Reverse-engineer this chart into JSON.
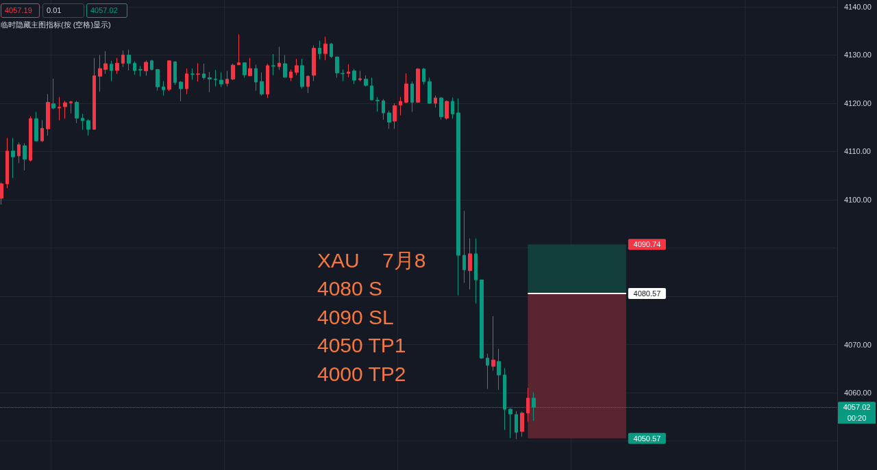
{
  "chart_data": {
    "type": "candlestick",
    "categories": [
      null,
      null,
      null,
      null,
      null,
      null,
      null,
      null,
      null,
      null,
      null,
      null,
      null,
      null,
      null,
      null,
      null,
      null,
      null,
      null,
      null,
      null,
      null,
      null,
      null,
      null,
      null,
      null,
      null,
      null,
      null,
      null,
      null,
      null,
      null,
      null,
      null,
      null,
      null,
      null,
      null,
      null,
      null,
      null,
      null,
      null,
      null,
      null,
      null,
      null,
      null,
      null,
      null,
      null,
      null,
      null,
      null,
      null,
      null,
      null,
      null,
      null,
      null,
      null,
      null,
      null,
      null,
      null,
      null,
      null,
      null,
      null,
      null,
      null,
      null,
      null,
      null,
      null,
      null,
      null,
      null,
      null,
      null,
      null,
      null,
      null,
      null,
      null,
      null,
      null,
      null,
      null,
      null,
      null,
      null,
      null,
      null,
      null,
      null,
      null,
      null,
      null,
      null,
      null,
      null,
      null,
      null,
      null,
      null,
      null,
      null,
      null,
      null,
      null,
      null,
      null,
      null,
      null,
      null,
      null,
      null,
      null,
      null,
      null,
      null,
      null,
      null,
      null,
      null,
      null,
      null,
      null,
      null,
      null,
      null,
      null,
      null,
      null,
      null,
      null,
      null,
      null,
      null,
      null,
      null
    ],
    "ohlc": [
      [
        4100.3,
        4103.6,
        4099.0,
        4103.3
      ],
      [
        4103.3,
        4112.8,
        4102.4,
        4110.1
      ],
      [
        4110.1,
        4112.8,
        4104.5,
        4108.9
      ],
      [
        4109.1,
        4111.9,
        4107.6,
        4111.4
      ],
      [
        4111.2,
        4111.7,
        4106.1,
        4108.4
      ],
      [
        4108.2,
        4117.3,
        4107.9,
        4116.8
      ],
      [
        4116.8,
        4118.2,
        4112.1,
        4112.2
      ],
      [
        4112.2,
        4116.5,
        4112.0,
        4114.8
      ],
      [
        4114.7,
        4121.9,
        4113.3,
        4120.2
      ],
      [
        4119.9,
        4125.1,
        4118.7,
        4119.0
      ],
      [
        4119.0,
        4121.3,
        4116.5,
        4119.2
      ],
      [
        4119.3,
        4120.5,
        4116.8,
        4120.1
      ],
      [
        4120.1,
        4120.5,
        4117.9,
        4120.3
      ],
      [
        4120.2,
        4120.5,
        4115.9,
        4116.9
      ],
      [
        4116.9,
        4117.8,
        4114.5,
        4116.4
      ],
      [
        4116.4,
        4116.7,
        4113.3,
        4114.6
      ],
      [
        4114.6,
        4129.4,
        4114.5,
        4125.7
      ],
      [
        4125.6,
        4130.0,
        4122.4,
        4127.2
      ],
      [
        4127.0,
        4130.8,
        4126.1,
        4128.2
      ],
      [
        4128.1,
        4128.8,
        4124.6,
        4126.8
      ],
      [
        4126.8,
        4129.4,
        4126.1,
        4128.3
      ],
      [
        4128.3,
        4130.9,
        4127.5,
        4130.0
      ],
      [
        4130.0,
        4131.1,
        4126.8,
        4128.3
      ],
      [
        4128.3,
        4128.7,
        4125.9,
        4126.8
      ],
      [
        4127.0,
        4127.7,
        4125.6,
        4126.9
      ],
      [
        4126.7,
        4128.9,
        4125.7,
        4128.5
      ],
      [
        4128.8,
        4129.0,
        4126.8,
        4127.0
      ],
      [
        4127.0,
        4127.1,
        4122.6,
        4123.4
      ],
      [
        4123.4,
        4124.6,
        4121.6,
        4122.8
      ],
      [
        4122.9,
        4128.9,
        4122.5,
        4128.8
      ],
      [
        4128.6,
        4128.7,
        4123.8,
        4124.3
      ],
      [
        4124.4,
        4124.6,
        4120.4,
        4123.0
      ],
      [
        4123.0,
        4127.2,
        4121.9,
        4126.1
      ],
      [
        4126.1,
        4127.2,
        4124.9,
        4126.0
      ],
      [
        4126.0,
        4128.3,
        4124.5,
        4126.1
      ],
      [
        4126.1,
        4128.2,
        4124.9,
        4125.3
      ],
      [
        4125.3,
        4126.5,
        4122.3,
        4125.0
      ],
      [
        4125.0,
        4126.9,
        4123.5,
        4124.9
      ],
      [
        4124.8,
        4126.4,
        4123.4,
        4124.0
      ],
      [
        4124.1,
        4126.7,
        4123.5,
        4125.0
      ],
      [
        4125.0,
        4128.2,
        4124.8,
        4127.9
      ],
      [
        4128.0,
        4134.3,
        4127.9,
        4128.4
      ],
      [
        4128.4,
        4128.4,
        4125.3,
        4125.9
      ],
      [
        4125.7,
        4129.4,
        4125.6,
        4127.2
      ],
      [
        4127.2,
        4128.0,
        4122.6,
        4124.4
      ],
      [
        4124.5,
        4126.4,
        4121.6,
        4121.9
      ],
      [
        4121.9,
        4128.2,
        4121.1,
        4127.8
      ],
      [
        4127.8,
        4130.2,
        4125.8,
        4127.7
      ],
      [
        4127.6,
        4131.7,
        4126.9,
        4128.3
      ],
      [
        4128.2,
        4130.0,
        4125.3,
        4125.4
      ],
      [
        4125.3,
        4127.0,
        4124.6,
        4126.5
      ],
      [
        4126.4,
        4129.2,
        4125.8,
        4127.8
      ],
      [
        4127.8,
        4129.2,
        4123.0,
        4123.5
      ],
      [
        4123.5,
        4125.8,
        4122.1,
        4125.6
      ],
      [
        4125.8,
        4132.0,
        4124.6,
        4131.4
      ],
      [
        4131.4,
        4133.0,
        4129.1,
        4130.3
      ],
      [
        4130.3,
        4133.8,
        4128.9,
        4132.3
      ],
      [
        4132.3,
        4132.5,
        4129.4,
        4129.7
      ],
      [
        4129.6,
        4129.7,
        4125.3,
        4126.3
      ],
      [
        4126.2,
        4127.0,
        4124.6,
        4126.1
      ],
      [
        4126.2,
        4128.1,
        4125.4,
        4126.5
      ],
      [
        4126.7,
        4127.1,
        4124.0,
        4124.8
      ],
      [
        4124.9,
        4126.7,
        4124.5,
        4125.1
      ],
      [
        4125.0,
        4125.8,
        4123.5,
        4123.7
      ],
      [
        4123.6,
        4125.3,
        4120.6,
        4120.7
      ],
      [
        4120.6,
        4121.3,
        4118.3,
        4120.5
      ],
      [
        4120.5,
        4120.9,
        4116.6,
        4118.0
      ],
      [
        4118.0,
        4118.5,
        4114.7,
        4116.1
      ],
      [
        4116.3,
        4120.0,
        4114.7,
        4119.5
      ],
      [
        4119.6,
        4121.3,
        4117.5,
        4120.4
      ],
      [
        4120.2,
        4126.2,
        4120.0,
        4124.0
      ],
      [
        4124.0,
        4124.5,
        4118.2,
        4120.2
      ],
      [
        4120.2,
        4127.3,
        4120.1,
        4127.1
      ],
      [
        4127.1,
        4127.3,
        4123.9,
        4124.5
      ],
      [
        4124.5,
        4125.3,
        4119.9,
        4120.0
      ],
      [
        4120.0,
        4121.6,
        4119.1,
        4121.1
      ],
      [
        4121.1,
        4121.3,
        4116.6,
        4117.2
      ],
      [
        4116.9,
        4120.6,
        4116.6,
        4120.4
      ],
      [
        4120.4,
        4121.2,
        4116.8,
        4117.8
      ],
      [
        4118.0,
        4121.0,
        4080.2,
        4088.5
      ],
      [
        4088.5,
        4097.7,
        4082.8,
        4085.5
      ],
      [
        4085.3,
        4092.0,
        4081.4,
        4088.8
      ],
      [
        4088.8,
        4092.0,
        4078.5,
        4083.4
      ],
      [
        4083.4,
        4083.4,
        4067.0,
        4067.2
      ],
      [
        4067.2,
        4068.1,
        4060.8,
        4065.7
      ],
      [
        4065.5,
        4075.9,
        4064.6,
        4066.8
      ],
      [
        4066.5,
        4069.1,
        4060.6,
        4063.7
      ],
      [
        4063.7,
        4065.1,
        4052.3,
        4056.6
      ],
      [
        4056.6,
        4056.8,
        4050.6,
        4055.6
      ],
      [
        4055.5,
        4056.2,
        4050.4,
        4051.8
      ],
      [
        4052.0,
        4056.1,
        4050.9,
        4055.8
      ],
      [
        4055.8,
        4061.0,
        4054.0,
        4058.9
      ],
      [
        4058.9,
        4060.1,
        4054.2,
        4057.0
      ],
      null,
      null,
      null,
      null,
      null,
      null,
      null,
      null,
      null,
      null,
      null,
      null,
      null,
      null,
      null,
      null,
      null,
      null,
      null,
      null,
      null,
      null,
      null,
      null,
      null,
      null,
      null,
      null,
      null,
      null,
      null,
      null,
      null,
      null,
      null,
      null,
      null,
      null,
      null,
      null,
      null,
      null,
      null,
      null,
      null,
      null,
      null,
      null,
      null,
      null,
      null,
      null
    ],
    "colors": [
      "#f23645",
      "#f23645",
      "#089981",
      "#f23645",
      "#089981",
      "#f23645",
      "#089981",
      "#f23645",
      "#f23645",
      "#089981",
      "#f23645",
      "#f23645",
      "#f23645",
      "#089981",
      "#089981",
      "#089981",
      "#f23645",
      "#f23645",
      "#f23645",
      "#089981",
      "#f23645",
      "#f23645",
      "#089981",
      "#089981",
      "#089981",
      "#f23645",
      "#089981",
      "#089981",
      "#089981",
      "#f23645",
      "#089981",
      "#089981",
      "#f23645",
      "#089981",
      "#f23645",
      "#089981",
      "#089981",
      "#089981",
      "#089981",
      "#f23645",
      "#f23645",
      "#f23645",
      "#089981",
      "#f23645",
      "#089981",
      "#089981",
      "#f23645",
      "#089981",
      "#f23645",
      "#089981",
      "#f23645",
      "#f23645",
      "#089981",
      "#f23645",
      "#f23645",
      "#089981",
      "#f23645",
      "#089981",
      "#089981",
      "#089981",
      "#f23645",
      "#089981",
      "#f23645",
      "#089981",
      "#089981",
      "#089981",
      "#089981",
      "#089981",
      "#f23645",
      "#f23645",
      "#f23645",
      "#089981",
      "#f23645",
      "#089981",
      "#089981",
      "#f23645",
      "#089981",
      "#f23645",
      "#089981",
      "#089981",
      "#089981",
      "#f23645",
      "#089981",
      "#089981",
      "#089981",
      "#f23645",
      "#089981",
      "#089981",
      "#089981",
      "#089981",
      "#f23645",
      "#f23645",
      "#089981",
      null,
      null,
      null,
      null,
      null,
      null,
      null,
      null,
      null,
      null,
      null,
      null,
      null,
      null,
      null,
      null,
      null,
      null,
      null,
      null,
      null,
      null,
      null,
      null,
      null,
      null,
      null,
      null,
      null,
      null,
      null,
      null,
      null,
      null,
      null,
      null,
      null,
      null,
      null,
      null,
      null,
      null,
      null,
      null,
      null,
      null,
      null,
      null,
      null,
      null,
      null,
      null
    ],
    "ylim": [
      4044,
      4141.4
    ],
    "yticks": [
      {
        "value": 4050,
        "label": null
      },
      {
        "value": 4060,
        "label": "4060.00"
      },
      {
        "value": 4070,
        "label": "4070.00"
      },
      {
        "value": 4080,
        "label": null
      },
      {
        "value": 4090,
        "label": null
      },
      {
        "value": 4100,
        "label": "4100.00"
      },
      {
        "value": 4110,
        "label": "4110.00"
      },
      {
        "value": 4120,
        "label": "4120.00"
      },
      {
        "value": 4130,
        "label": "4130.00"
      },
      {
        "value": 4140,
        "label": "4140.00"
      }
    ],
    "grid": true,
    "tick_labels": "y",
    "bands": [
      {
        "axis": "y",
        "from": 4090.74,
        "to": 4080.57,
        "label": "4090.74",
        "color": "#123e3b"
      },
      {
        "axis": "y",
        "from": 4050.57,
        "to": 4080.57,
        "label": "4050.57",
        "color": "#5a2430"
      }
    ],
    "ref_lines": [
      {
        "axis": "y",
        "value": 4080.57,
        "label": "4080.57",
        "color": "#ffffff"
      },
      {
        "axis": "y",
        "value": 4057.02,
        "label": "4057.02",
        "color": "#089981",
        "line_style": "dotted"
      }
    ],
    "annotations": [
      "4057.19",
      "0.01",
      "4057.02",
      "临时隐藏主图指标(按 (空格)显示)",
      "XAU    7月8",
      "4080 S",
      "4090 SL",
      "4050 TP1",
      "4000 TP2",
      "00:20"
    ]
  }
}
